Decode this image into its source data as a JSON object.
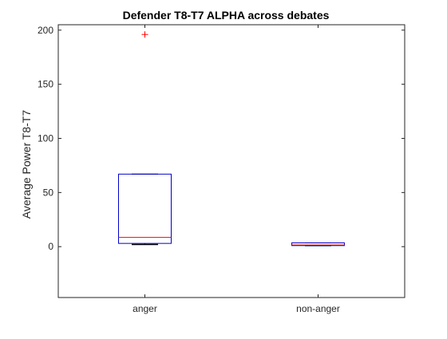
{
  "chart_data": {
    "type": "box",
    "title": "Defender T8-T7 ALPHA across debates",
    "xlabel": "",
    "ylabel": "Average Power T8-T7",
    "ylim": [
      -47,
      205
    ],
    "yticks": [
      0,
      50,
      100,
      150,
      200
    ],
    "categories": [
      "anger",
      "non-anger"
    ],
    "boxes": [
      {
        "category": "anger",
        "whisker_low": 2,
        "q1": 3,
        "median": 8.5,
        "q3": 67,
        "whisker_high": 67,
        "outliers": [
          196
        ]
      },
      {
        "category": "non-anger",
        "whisker_low": 1,
        "q1": 1,
        "median": 1.5,
        "q3": 3.5,
        "whisker_high": 3.5,
        "outliers": []
      }
    ],
    "colors": {
      "box": "#0000cc",
      "median": "#ff0000",
      "outlier": "#ff0000",
      "whisker": "#000000",
      "axes": "#262626"
    }
  }
}
